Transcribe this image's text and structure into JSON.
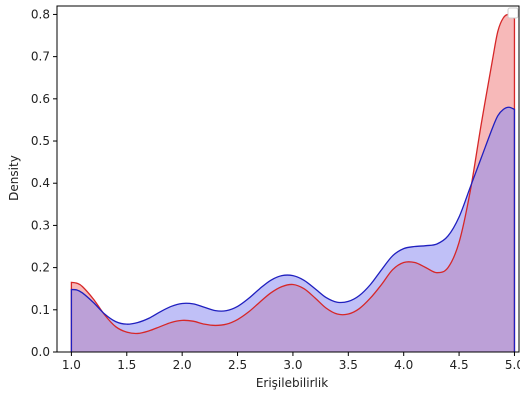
{
  "chart_data": {
    "type": "area",
    "title": "",
    "xlabel": "Erişilebilirlik",
    "ylabel": "Density",
    "xlim": [
      0.87,
      5.05
    ],
    "ylim": [
      0,
      0.82
    ],
    "xticks": [
      1.0,
      1.5,
      2.0,
      2.5,
      3.0,
      3.5,
      4.0,
      4.5,
      5.0
    ],
    "xtick_labels": [
      "1.0",
      "1.5",
      "2.0",
      "2.5",
      "3.0",
      "3.5",
      "4.0",
      "4.5",
      "5.0"
    ],
    "yticks": [
      0.0,
      0.1,
      0.2,
      0.3,
      0.4,
      0.5,
      0.6,
      0.7,
      0.8
    ],
    "ytick_labels": [
      "0.0",
      "0.1",
      "0.2",
      "0.3",
      "0.4",
      "0.5",
      "0.6",
      "0.7",
      "0.8"
    ],
    "grid": false,
    "legend": "top-right",
    "series": [
      {
        "color": "#d62728",
        "fill": "#f08080",
        "x": [
          1.0,
          1.05,
          1.1,
          1.2,
          1.3,
          1.4,
          1.5,
          1.6,
          1.7,
          1.8,
          1.9,
          2.0,
          2.1,
          2.2,
          2.3,
          2.4,
          2.5,
          2.6,
          2.7,
          2.8,
          2.9,
          3.0,
          3.1,
          3.2,
          3.3,
          3.4,
          3.5,
          3.6,
          3.7,
          3.8,
          3.9,
          4.0,
          4.1,
          4.2,
          4.3,
          4.4,
          4.5,
          4.6,
          4.7,
          4.8,
          4.85,
          4.9,
          4.95,
          5.0
        ],
        "y": [
          0.165,
          0.163,
          0.155,
          0.125,
          0.088,
          0.06,
          0.047,
          0.044,
          0.05,
          0.06,
          0.07,
          0.075,
          0.073,
          0.066,
          0.063,
          0.066,
          0.077,
          0.095,
          0.118,
          0.14,
          0.155,
          0.16,
          0.15,
          0.128,
          0.104,
          0.09,
          0.09,
          0.103,
          0.128,
          0.16,
          0.195,
          0.212,
          0.212,
          0.2,
          0.188,
          0.2,
          0.26,
          0.38,
          0.54,
          0.69,
          0.76,
          0.792,
          0.8,
          0.79
        ]
      },
      {
        "color": "#1f1fbf",
        "fill": "#8c8cf0",
        "x": [
          1.0,
          1.05,
          1.1,
          1.2,
          1.3,
          1.4,
          1.5,
          1.6,
          1.7,
          1.8,
          1.9,
          2.0,
          2.1,
          2.2,
          2.3,
          2.4,
          2.5,
          2.6,
          2.7,
          2.8,
          2.9,
          3.0,
          3.1,
          3.2,
          3.3,
          3.4,
          3.5,
          3.6,
          3.7,
          3.8,
          3.9,
          4.0,
          4.1,
          4.2,
          4.3,
          4.4,
          4.5,
          4.6,
          4.7,
          4.8,
          4.85,
          4.9,
          4.95,
          5.0
        ],
        "y": [
          0.148,
          0.147,
          0.14,
          0.117,
          0.09,
          0.072,
          0.066,
          0.07,
          0.08,
          0.095,
          0.108,
          0.115,
          0.114,
          0.106,
          0.098,
          0.098,
          0.108,
          0.127,
          0.15,
          0.17,
          0.181,
          0.181,
          0.17,
          0.15,
          0.129,
          0.118,
          0.12,
          0.134,
          0.16,
          0.195,
          0.228,
          0.245,
          0.25,
          0.252,
          0.256,
          0.275,
          0.32,
          0.39,
          0.46,
          0.53,
          0.56,
          0.575,
          0.58,
          0.575
        ]
      }
    ]
  }
}
